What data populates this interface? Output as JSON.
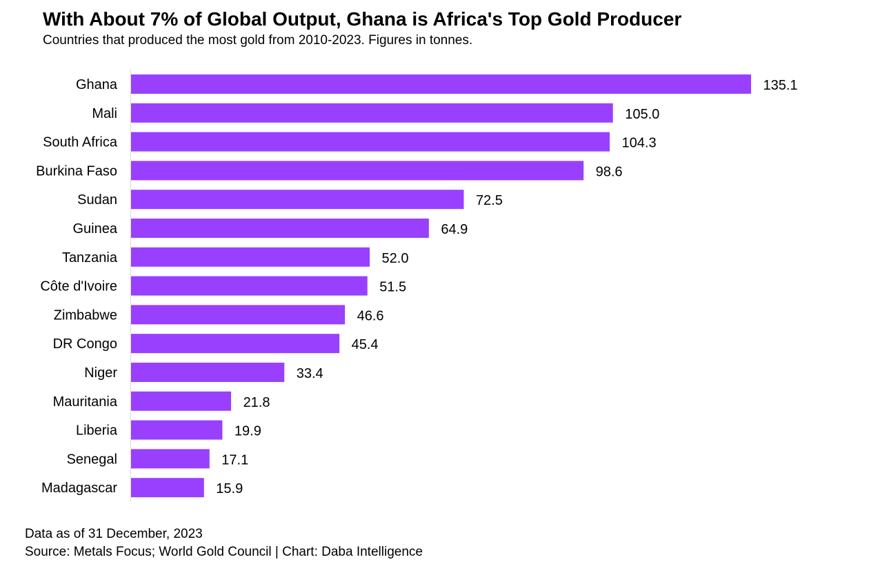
{
  "title": "With About 7% of Global Output, Ghana is Africa's Top Gold Producer",
  "subtitle": "Countries that produced the most gold from 2010-2023. Figures in tonnes.",
  "footer": {
    "note": "Data as of 31 December, 2023",
    "source": "Source: Metals Focus; World Gold Council | Chart: Daba Intelligence"
  },
  "chart_data": {
    "type": "bar",
    "orientation": "horizontal",
    "categories": [
      "Ghana",
      "Mali",
      "South Africa",
      "Burkina Faso",
      "Sudan",
      "Guinea",
      "Tanzania",
      "Côte d'Ivoire",
      "Zimbabwe",
      "DR Congo",
      "Niger",
      "Mauritania",
      "Liberia",
      "Senegal",
      "Madagascar"
    ],
    "values": [
      135.1,
      105.0,
      104.3,
      98.6,
      72.5,
      64.9,
      52.0,
      51.5,
      46.6,
      45.4,
      33.4,
      21.8,
      19.9,
      17.1,
      15.9
    ],
    "value_labels": [
      "135.1",
      "105.0",
      "104.3",
      "98.6",
      "72.5",
      "64.9",
      "52.0",
      "51.5",
      "46.6",
      "45.4",
      "33.4",
      "21.8",
      "19.9",
      "17.1",
      "15.9"
    ],
    "bar_color": "#9940FF",
    "axis_color": "#D9D9D9",
    "grid": false,
    "xlim": [
      0,
      135.1
    ]
  }
}
